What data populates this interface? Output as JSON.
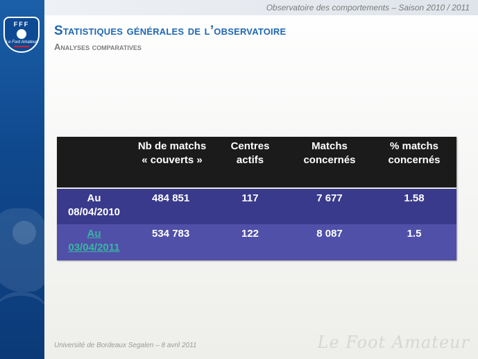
{
  "header": {
    "tagline": "Observatoire des comportements – Saison 2010 / 2011"
  },
  "logo": {
    "initials": "FFF",
    "script": "Le Foot Amateur",
    "icon": "fff-crest-icon"
  },
  "slide": {
    "title": "Statistiques générales de l’observatoire",
    "subtitle": "Analyses comparatives"
  },
  "table": {
    "headers": [
      "",
      "Nb de matchs « couverts »",
      "Centres actifs",
      "Matchs concernés",
      "% matchs concernés"
    ],
    "rows": [
      {
        "label": "Au 08/04/2010",
        "nb_matchs": "484 851",
        "centres": "117",
        "matchs": "7 677",
        "pct": "1.58"
      },
      {
        "label": "Au 03/04/2011",
        "nb_matchs": "534 783",
        "centres": "122",
        "matchs": "8 087",
        "pct": "1.5"
      }
    ],
    "colors": {
      "header_bg": "#1b1b1b",
      "row1_bg": "#3a3a8c",
      "row2_bg": "#5050a8",
      "link": "#39b6a2"
    }
  },
  "footer": {
    "credit": "Université de Bordeaux Segalen – 8 avril 2011",
    "brand": "Le Foot Amateur"
  }
}
